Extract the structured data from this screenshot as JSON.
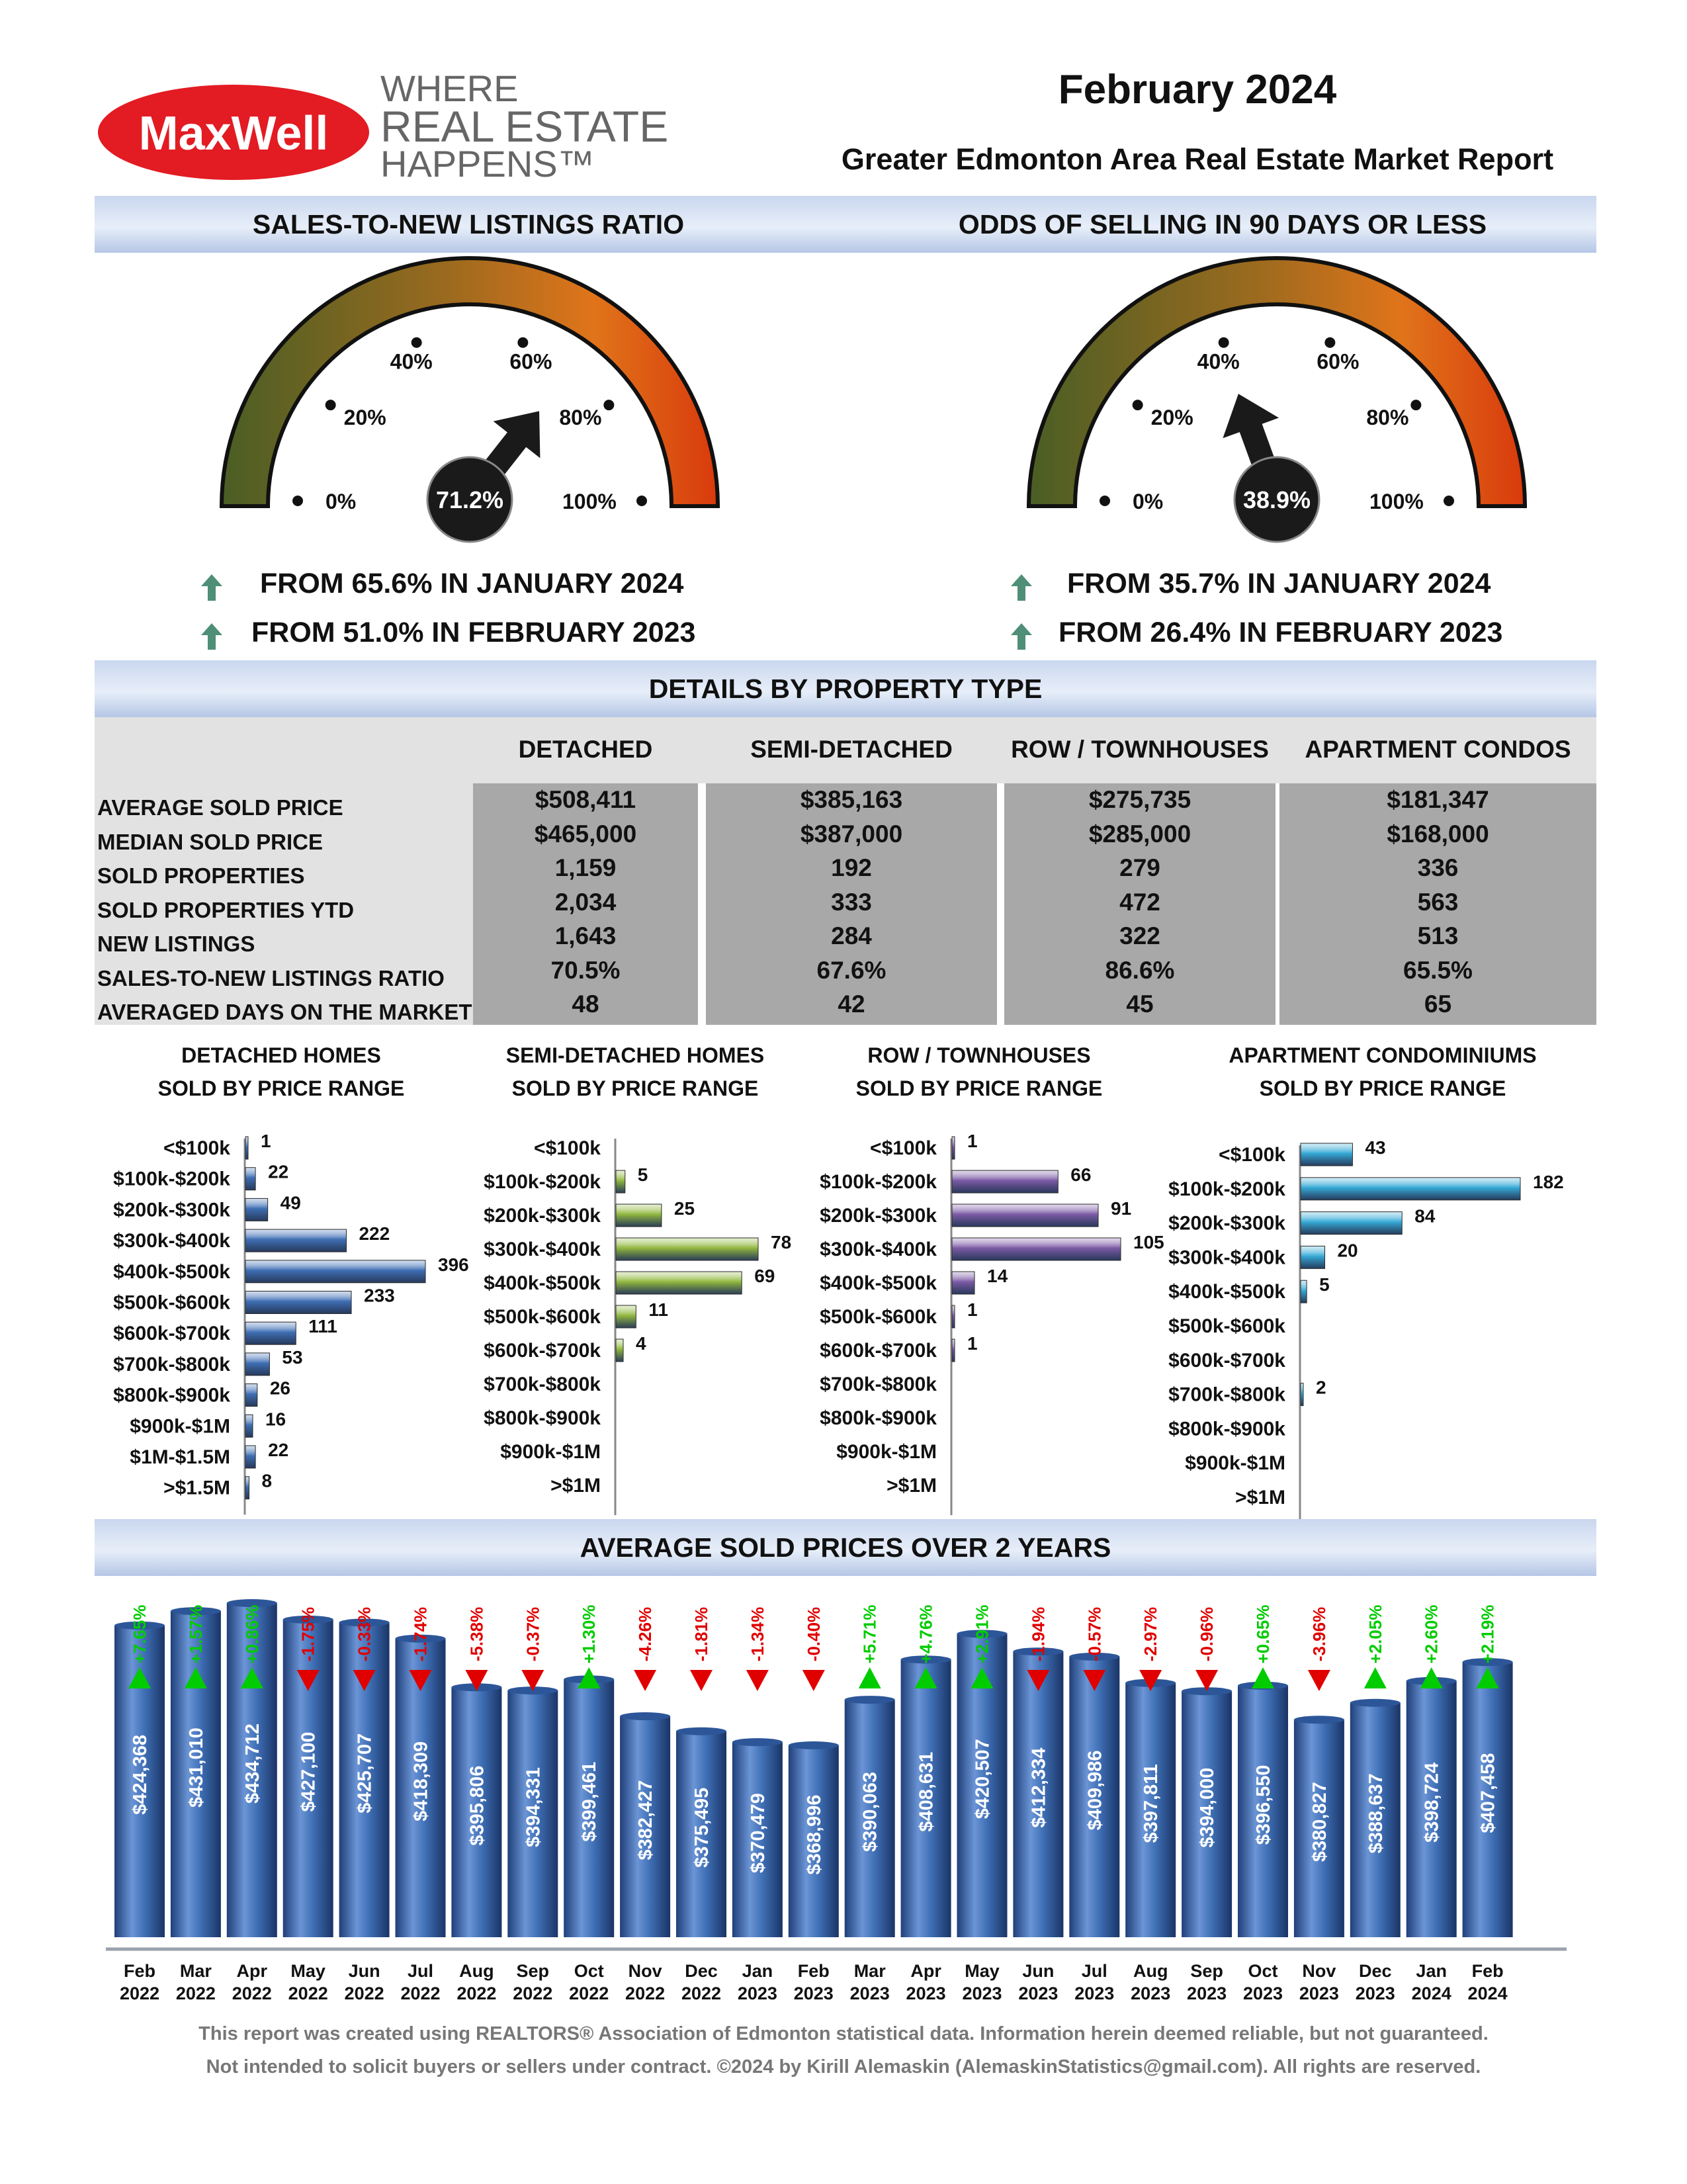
{
  "brand": {
    "logo_text": "MaxWell",
    "tagline_line1": "WHERE",
    "tagline_line2": "REAL ESTATE",
    "tagline_line3": "HAPPENS™",
    "logo_red": "#e31b23",
    "logo_gray": "#666666"
  },
  "header": {
    "month": "February 2024",
    "subtitle": "Greater Edmonton Area Real Estate Market Report"
  },
  "gauges": [
    {
      "title": "SALES-TO-NEW LISTINGS RATIO",
      "value": 71.2,
      "value_label": "71.2%",
      "ticks": [
        "0%",
        "20%",
        "40%",
        "60%",
        "80%",
        "100%"
      ],
      "trend1": "FROM 65.6% IN JANUARY 2024",
      "trend2": "FROM 51.0% IN FEBRUARY 2023"
    },
    {
      "title": "ODDS OF SELLING IN 90 DAYS OR LESS",
      "value": 38.9,
      "value_label": "38.9%",
      "ticks": [
        "0%",
        "20%",
        "40%",
        "60%",
        "80%",
        "100%"
      ],
      "trend1": "FROM 35.7% IN JANUARY 2024",
      "trend2": "FROM 26.4% IN FEBRUARY 2023"
    }
  ],
  "details": {
    "title": "DETAILS BY PROPERTY TYPE",
    "columns": [
      "DETACHED",
      "SEMI-DETACHED",
      "ROW / TOWNHOUSES",
      "APARTMENT CONDOS"
    ],
    "rows": [
      {
        "label": "AVERAGE SOLD PRICE",
        "values": [
          "$508,411",
          "$385,163",
          "$275,735",
          "$181,347"
        ]
      },
      {
        "label": "MEDIAN SOLD PRICE",
        "values": [
          "$465,000",
          "$387,000",
          "$285,000",
          "$168,000"
        ]
      },
      {
        "label": "SOLD PROPERTIES",
        "values": [
          "1,159",
          "192",
          "279",
          "336"
        ]
      },
      {
        "label": "SOLD PROPERTIES YTD",
        "values": [
          "2,034",
          "333",
          "472",
          "563"
        ]
      },
      {
        "label": "NEW LISTINGS",
        "values": [
          "1,643",
          "284",
          "322",
          "513"
        ]
      },
      {
        "label": "SALES-TO-NEW LISTINGS RATIO",
        "values": [
          "70.5%",
          "67.6%",
          "86.6%",
          "65.5%"
        ]
      },
      {
        "label": "AVERAGED DAYS ON THE MARKET",
        "values": [
          "48",
          "42",
          "45",
          "65"
        ]
      }
    ]
  },
  "chart_data": [
    {
      "type": "bar",
      "orientation": "horizontal",
      "title": "DETACHED HOMES",
      "subtitle": "SOLD BY PRICE RANGE",
      "categories": [
        "<$100k",
        "$100k-$200k",
        "$200k-$300k",
        "$300k-$400k",
        "$400k-$500k",
        "$500k-$600k",
        "$600k-$700k",
        "$700k-$800k",
        "$800k-$900k",
        "$900k-$1M",
        "$1M-$1.5M",
        ">$1.5M"
      ],
      "values": [
        1,
        22,
        49,
        222,
        396,
        233,
        111,
        53,
        26,
        16,
        22,
        8
      ],
      "xmax": 396,
      "color": "#3f6fb5"
    },
    {
      "type": "bar",
      "orientation": "horizontal",
      "title": "SEMI-DETACHED HOMES",
      "subtitle": "SOLD BY PRICE RANGE",
      "categories": [
        "<$100k",
        "$100k-$200k",
        "$200k-$300k",
        "$300k-$400k",
        "$400k-$500k",
        "$500k-$600k",
        "$600k-$700k",
        "$700k-$800k",
        "$800k-$900k",
        "$900k-$1M",
        ">$1M"
      ],
      "values": [
        null,
        5,
        25,
        78,
        69,
        11,
        4,
        null,
        null,
        null,
        null
      ],
      "xmax": 78,
      "color": "#92b83f"
    },
    {
      "type": "bar",
      "orientation": "horizontal",
      "title": "ROW / TOWNHOUSES",
      "subtitle": "SOLD BY PRICE RANGE",
      "categories": [
        "<$100k",
        "$100k-$200k",
        "$200k-$300k",
        "$300k-$400k",
        "$400k-$500k",
        "$500k-$600k",
        "$600k-$700k",
        "$700k-$800k",
        "$800k-$900k",
        "$900k-$1M",
        ">$1M"
      ],
      "values": [
        1,
        66,
        91,
        105,
        14,
        1,
        1,
        null,
        null,
        null,
        null
      ],
      "xmax": 105,
      "color": "#7d5ba6"
    },
    {
      "type": "bar",
      "orientation": "horizontal",
      "title": "APARTMENT CONDOMINIUMS",
      "subtitle": "SOLD BY PRICE RANGE",
      "categories": [
        "<$100k",
        "$100k-$200k",
        "$200k-$300k",
        "$300k-$400k",
        "$400k-$500k",
        "$500k-$600k",
        "$600k-$700k",
        "$700k-$800k",
        "$800k-$900k",
        "$900k-$1M",
        ">$1M"
      ],
      "values": [
        43,
        182,
        84,
        20,
        5,
        null,
        null,
        2,
        null,
        null,
        null
      ],
      "xmax": 182,
      "color": "#35a9d6"
    },
    {
      "type": "bar",
      "title": "AVERAGE SOLD PRICES OVER 2 YEARS",
      "months": [
        "Feb",
        "Mar",
        "Apr",
        "May",
        "Jun",
        "Jul",
        "Aug",
        "Sep",
        "Oct",
        "Nov",
        "Dec",
        "Jan",
        "Feb",
        "Mar",
        "Apr",
        "May",
        "Jun",
        "Jul",
        "Aug",
        "Sep",
        "Oct",
        "Nov",
        "Dec",
        "Jan",
        "Feb"
      ],
      "years": [
        "2022",
        "2022",
        "2022",
        "2022",
        "2022",
        "2022",
        "2022",
        "2022",
        "2022",
        "2022",
        "2022",
        "2023",
        "2023",
        "2023",
        "2023",
        "2023",
        "2023",
        "2023",
        "2023",
        "2023",
        "2023",
        "2023",
        "2023",
        "2024",
        "2024"
      ],
      "values": [
        424368,
        431010,
        434712,
        427100,
        425707,
        418309,
        395806,
        394331,
        399461,
        382427,
        375495,
        370479,
        368996,
        390063,
        408631,
        420507,
        412334,
        409986,
        397811,
        394000,
        396550,
        380827,
        388637,
        398724,
        407458
      ],
      "value_labels": [
        "$424,368",
        "$431,010",
        "$434,712",
        "$427,100",
        "$425,707",
        "$418,309",
        "$395,806",
        "$394,331",
        "$399,461",
        "$382,427",
        "$375,495",
        "$370,479",
        "$368,996",
        "$390,063",
        "$408,631",
        "$420,507",
        "$412,334",
        "$409,986",
        "$397,811",
        "$394,000",
        "$396,550",
        "$380,827",
        "$388,637",
        "$398,724",
        "$407,458"
      ],
      "changes": [
        "+7.65%",
        "+1.57%",
        "+0.86%",
        "-1.75%",
        "-0.33%",
        "-1.74%",
        "-5.38%",
        "-0.37%",
        "+1.30%",
        "-4.26%",
        "-1.81%",
        "-1.34%",
        "-0.40%",
        "+5.71%",
        "+4.76%",
        "+2.91%",
        "-1.94%",
        "-0.57%",
        "-2.97%",
        "-0.96%",
        "+0.65%",
        "-3.96%",
        "+2.05%",
        "+2.60%",
        "+2.19%"
      ],
      "up_color": "#00cc00",
      "down_color": "#e00000",
      "bar_color": "#3f6fb5"
    }
  ],
  "footer": {
    "line1": "This report was created using REALTORS® Association of Edmonton statistical data. Information herein deemed reliable, but not guaranteed.",
    "line2": "Not intended to solicit buyers or sellers under contract. ©2024 by Kirill Alemaskin (AlemaskinStatistics@gmail.com). All rights are reserved."
  }
}
